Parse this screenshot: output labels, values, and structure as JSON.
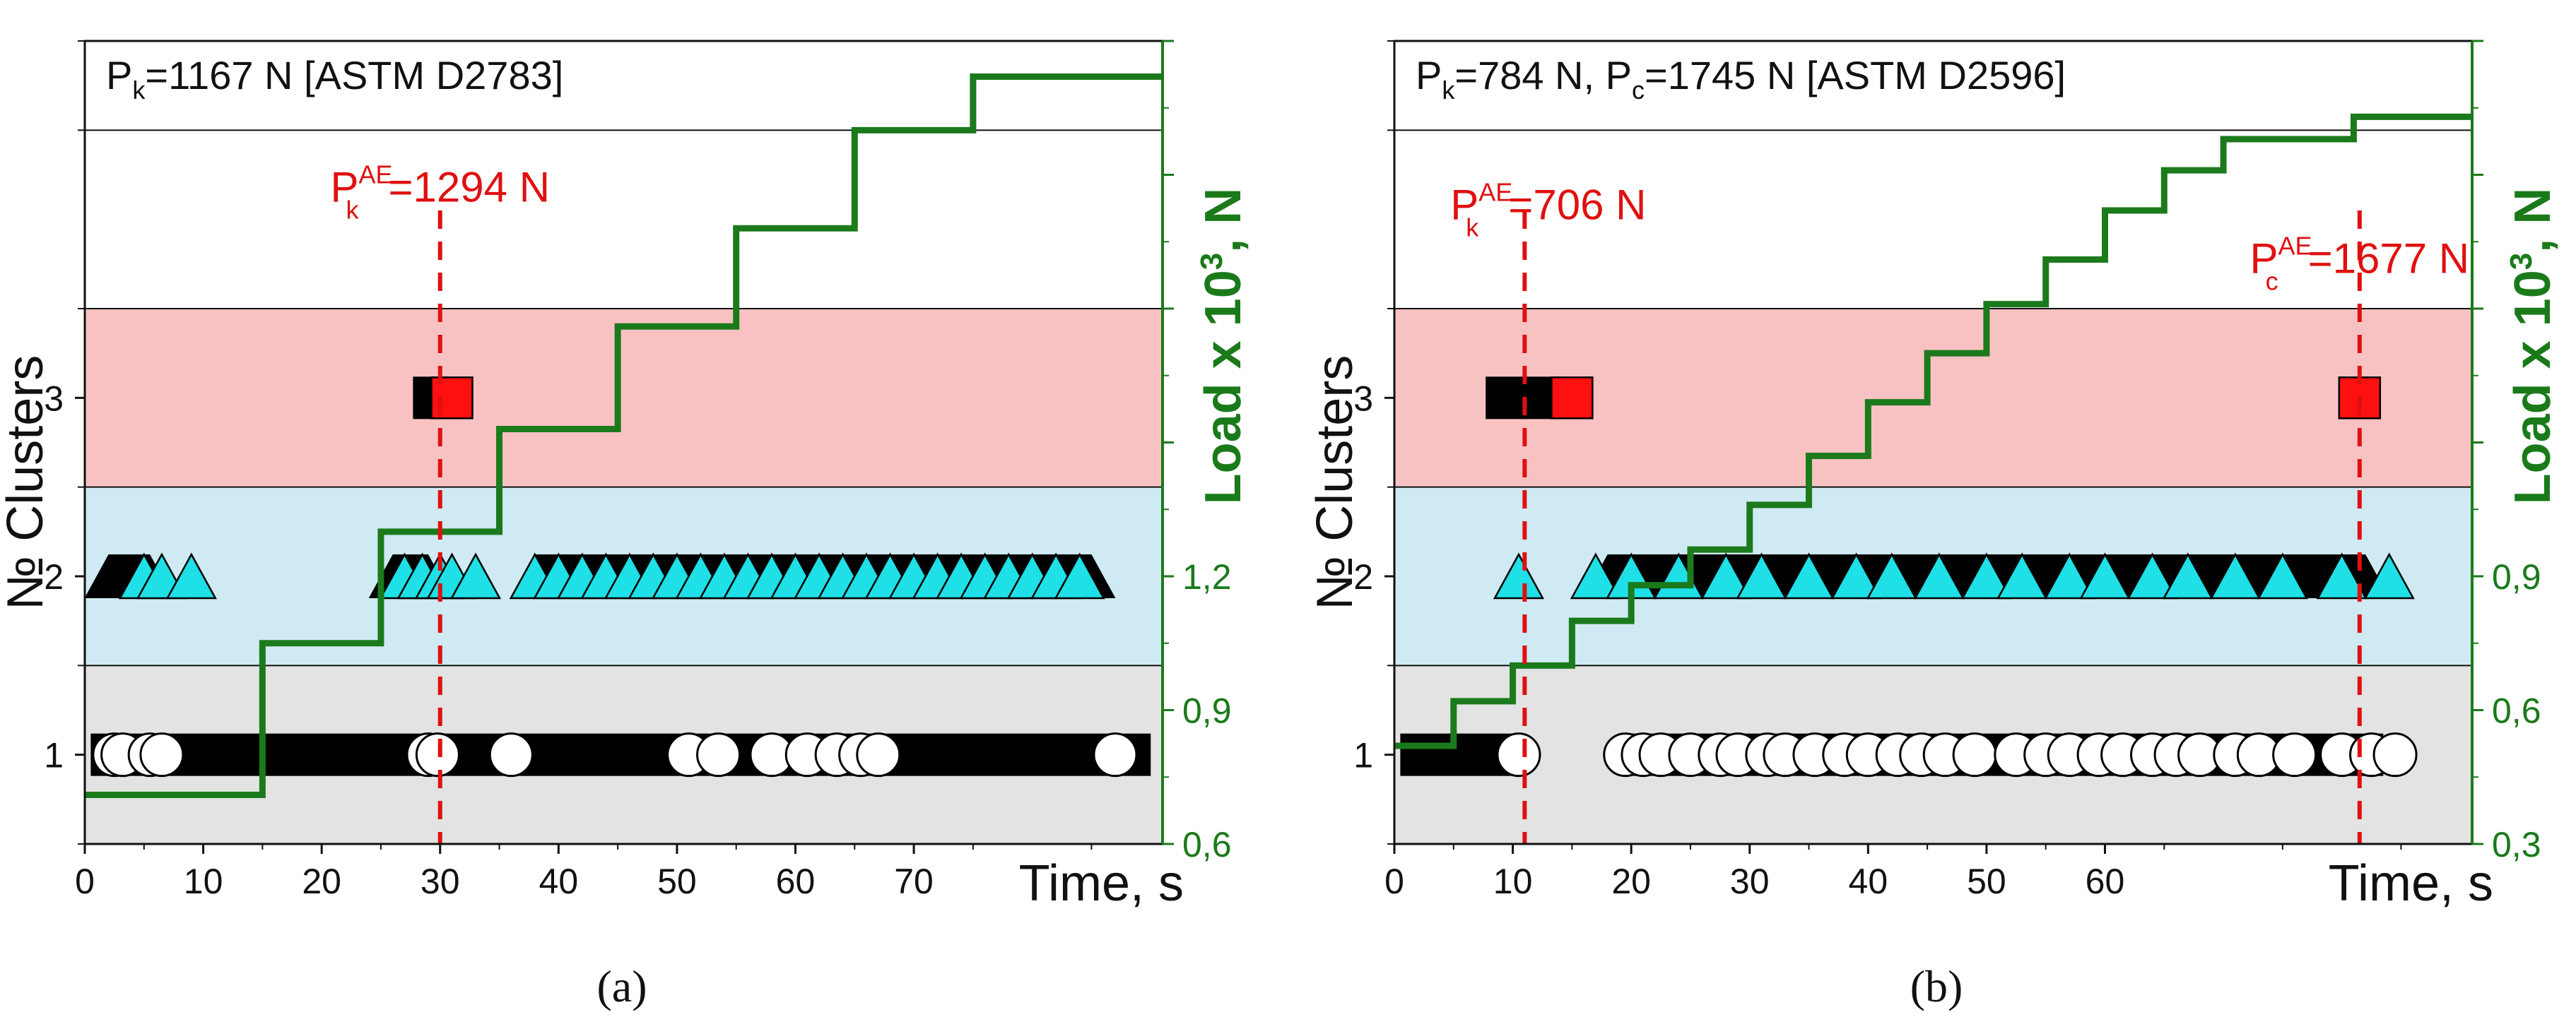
{
  "chart_data": [
    {
      "type": "scatter",
      "panel": "a",
      "caption": "(a)",
      "xlabel": "Time, s",
      "ylabel": "№ Clusters",
      "y2label_pre": "Load x 10",
      "y2label_exp": "3",
      "y2label_post": ", N",
      "xlim": [
        0,
        91
      ],
      "xticks": [
        0,
        10,
        20,
        30,
        40,
        50,
        60,
        70
      ],
      "ylim": [
        0.5,
        5
      ],
      "yticks": [
        1,
        2,
        3
      ],
      "y2lim": [
        0.6,
        2.4
      ],
      "y2ticks": [
        0.6,
        0.9,
        1.2
      ],
      "y2ticklabels": [
        "0,6",
        "0,9",
        "1,2"
      ],
      "bands": [
        {
          "from": 0.5,
          "to": 1.5,
          "color": "#e3e3e3"
        },
        {
          "from": 1.5,
          "to": 2.5,
          "color": "#cfeaf2"
        },
        {
          "from": 2.5,
          "to": 3.5,
          "color": "#f9c2c2"
        },
        {
          "from": 3.5,
          "to": 4.5,
          "color": "#ffffff"
        },
        {
          "from": 4.5,
          "to": 5.0,
          "color": "#ffffff"
        }
      ],
      "box_main": "P",
      "box_sub": "k",
      "box_rest": "=1167 N [ASTM D2783]",
      "markers": [
        {
          "x": 30,
          "main": "P",
          "sub": "k",
          "sup": "AE",
          "rest": "=1294 N",
          "label_x": 30,
          "label_y": 4.1
        }
      ],
      "load_step": {
        "x": [
          0,
          15,
          15,
          25,
          25,
          35,
          35,
          45,
          45,
          55,
          55,
          65,
          65,
          75,
          75,
          91
        ],
        "y": [
          0.71,
          0.71,
          1.05,
          1.05,
          1.3,
          1.3,
          1.53,
          1.53,
          1.76,
          1.76,
          1.98,
          1.98,
          2.2,
          2.2,
          2.32,
          2.32
        ]
      },
      "cluster1": {
        "black_ranges": [
          [
            0.5,
            90
          ]
        ],
        "white": [
          2.5,
          3.2,
          5.5,
          6.5,
          29,
          29.8,
          36,
          51,
          53.5,
          58,
          61,
          63.5,
          65.5,
          67,
          87
        ]
      },
      "cluster2": {
        "black_ranges": [
          [
            2,
            5.5
          ],
          [
            26,
            29
          ],
          [
            38,
            85
          ]
        ],
        "cyan": [
          5,
          6.5,
          9,
          27,
          28.5,
          30,
          31,
          33,
          38,
          40,
          42,
          44,
          46,
          48,
          50,
          52,
          54,
          56,
          58,
          60,
          62,
          64,
          66,
          68,
          70,
          72,
          74,
          76,
          78,
          80,
          82,
          84
        ]
      },
      "cluster3": {
        "black": [
          29.5
        ],
        "red": [
          31
        ]
      }
    },
    {
      "type": "scatter",
      "panel": "b",
      "caption": "(b)",
      "xlabel": "Time, s",
      "ylabel": "№ Clusters",
      "y2label_pre": "Load x 10",
      "y2label_exp": "3",
      "y2label_post": ", N",
      "xlim": [
        0,
        91
      ],
      "xticks": [
        0,
        10,
        20,
        30,
        40,
        50,
        60
      ],
      "ylim": [
        0.5,
        5
      ],
      "yticks": [
        1,
        2,
        3
      ],
      "y2lim": [
        0.3,
        2.1
      ],
      "y2ticks": [
        0.3,
        0.6,
        0.9
      ],
      "y2ticklabels": [
        "0,3",
        "0,6",
        "0,9"
      ],
      "bands": [
        {
          "from": 0.5,
          "to": 1.5,
          "color": "#e3e3e3"
        },
        {
          "from": 1.5,
          "to": 2.5,
          "color": "#cfeaf2"
        },
        {
          "from": 2.5,
          "to": 3.5,
          "color": "#f9c2c2"
        },
        {
          "from": 3.5,
          "to": 4.5,
          "color": "#ffffff"
        },
        {
          "from": 4.5,
          "to": 5.0,
          "color": "#ffffff"
        }
      ],
      "box_main": "P",
      "box_sub": "k",
      "box_rest": "=784 N, ",
      "box_main2": "P",
      "box_sub2": "c",
      "box_rest2": "=1745 N [ASTM D2596]",
      "markers": [
        {
          "x": 11,
          "main": "P",
          "sub": "k",
          "sup": "AE",
          "rest": "=706 N",
          "label_x": 13,
          "label_y": 4.0
        },
        {
          "x": 81.5,
          "main": "P",
          "sub": "c",
          "sup": "AE",
          "rest": "=1677 N",
          "label_x": 81.5,
          "label_y": 3.7
        }
      ],
      "load_step": {
        "x": [
          0,
          5,
          5,
          10,
          10,
          11,
          11,
          15,
          15,
          20,
          20,
          25,
          25,
          30,
          30,
          35,
          35,
          40,
          40,
          45,
          45,
          50,
          50,
          55,
          55,
          60,
          60,
          65,
          65,
          70,
          70,
          81,
          81,
          91
        ],
        "y": [
          0.52,
          0.52,
          0.62,
          0.62,
          0.7,
          0.7,
          0.7,
          0.7,
          0.8,
          0.8,
          0.88,
          0.88,
          0.96,
          0.96,
          1.06,
          1.06,
          1.17,
          1.17,
          1.29,
          1.29,
          1.4,
          1.4,
          1.51,
          1.51,
          1.61,
          1.61,
          1.72,
          1.72,
          1.81,
          1.81,
          1.88,
          1.88,
          1.93,
          1.93
        ]
      },
      "cluster1": {
        "black_ranges": [
          [
            0.5,
            10.5
          ],
          [
            19.5,
            83.5
          ]
        ],
        "white": [
          10.5,
          19.5,
          21,
          22.5,
          25,
          27.5,
          29,
          31.5,
          33,
          35.5,
          38,
          40,
          42.5,
          44.5,
          46.5,
          49,
          52.5,
          55,
          57,
          59.5,
          61.5,
          64,
          66,
          68,
          71,
          73,
          76,
          80,
          82.5,
          84.5
        ]
      },
      "cluster2": {
        "black_ranges": [
          [
            18,
            82
          ]
        ],
        "cyan": [
          10.5,
          17,
          20,
          24,
          28,
          31,
          35,
          39,
          42,
          46,
          50,
          53,
          57,
          60,
          64,
          67,
          71,
          75,
          80,
          84
        ]
      },
      "cluster3": {
        "black": [
          9.5,
          12.5
        ],
        "red": [
          15,
          81.5
        ]
      }
    }
  ]
}
